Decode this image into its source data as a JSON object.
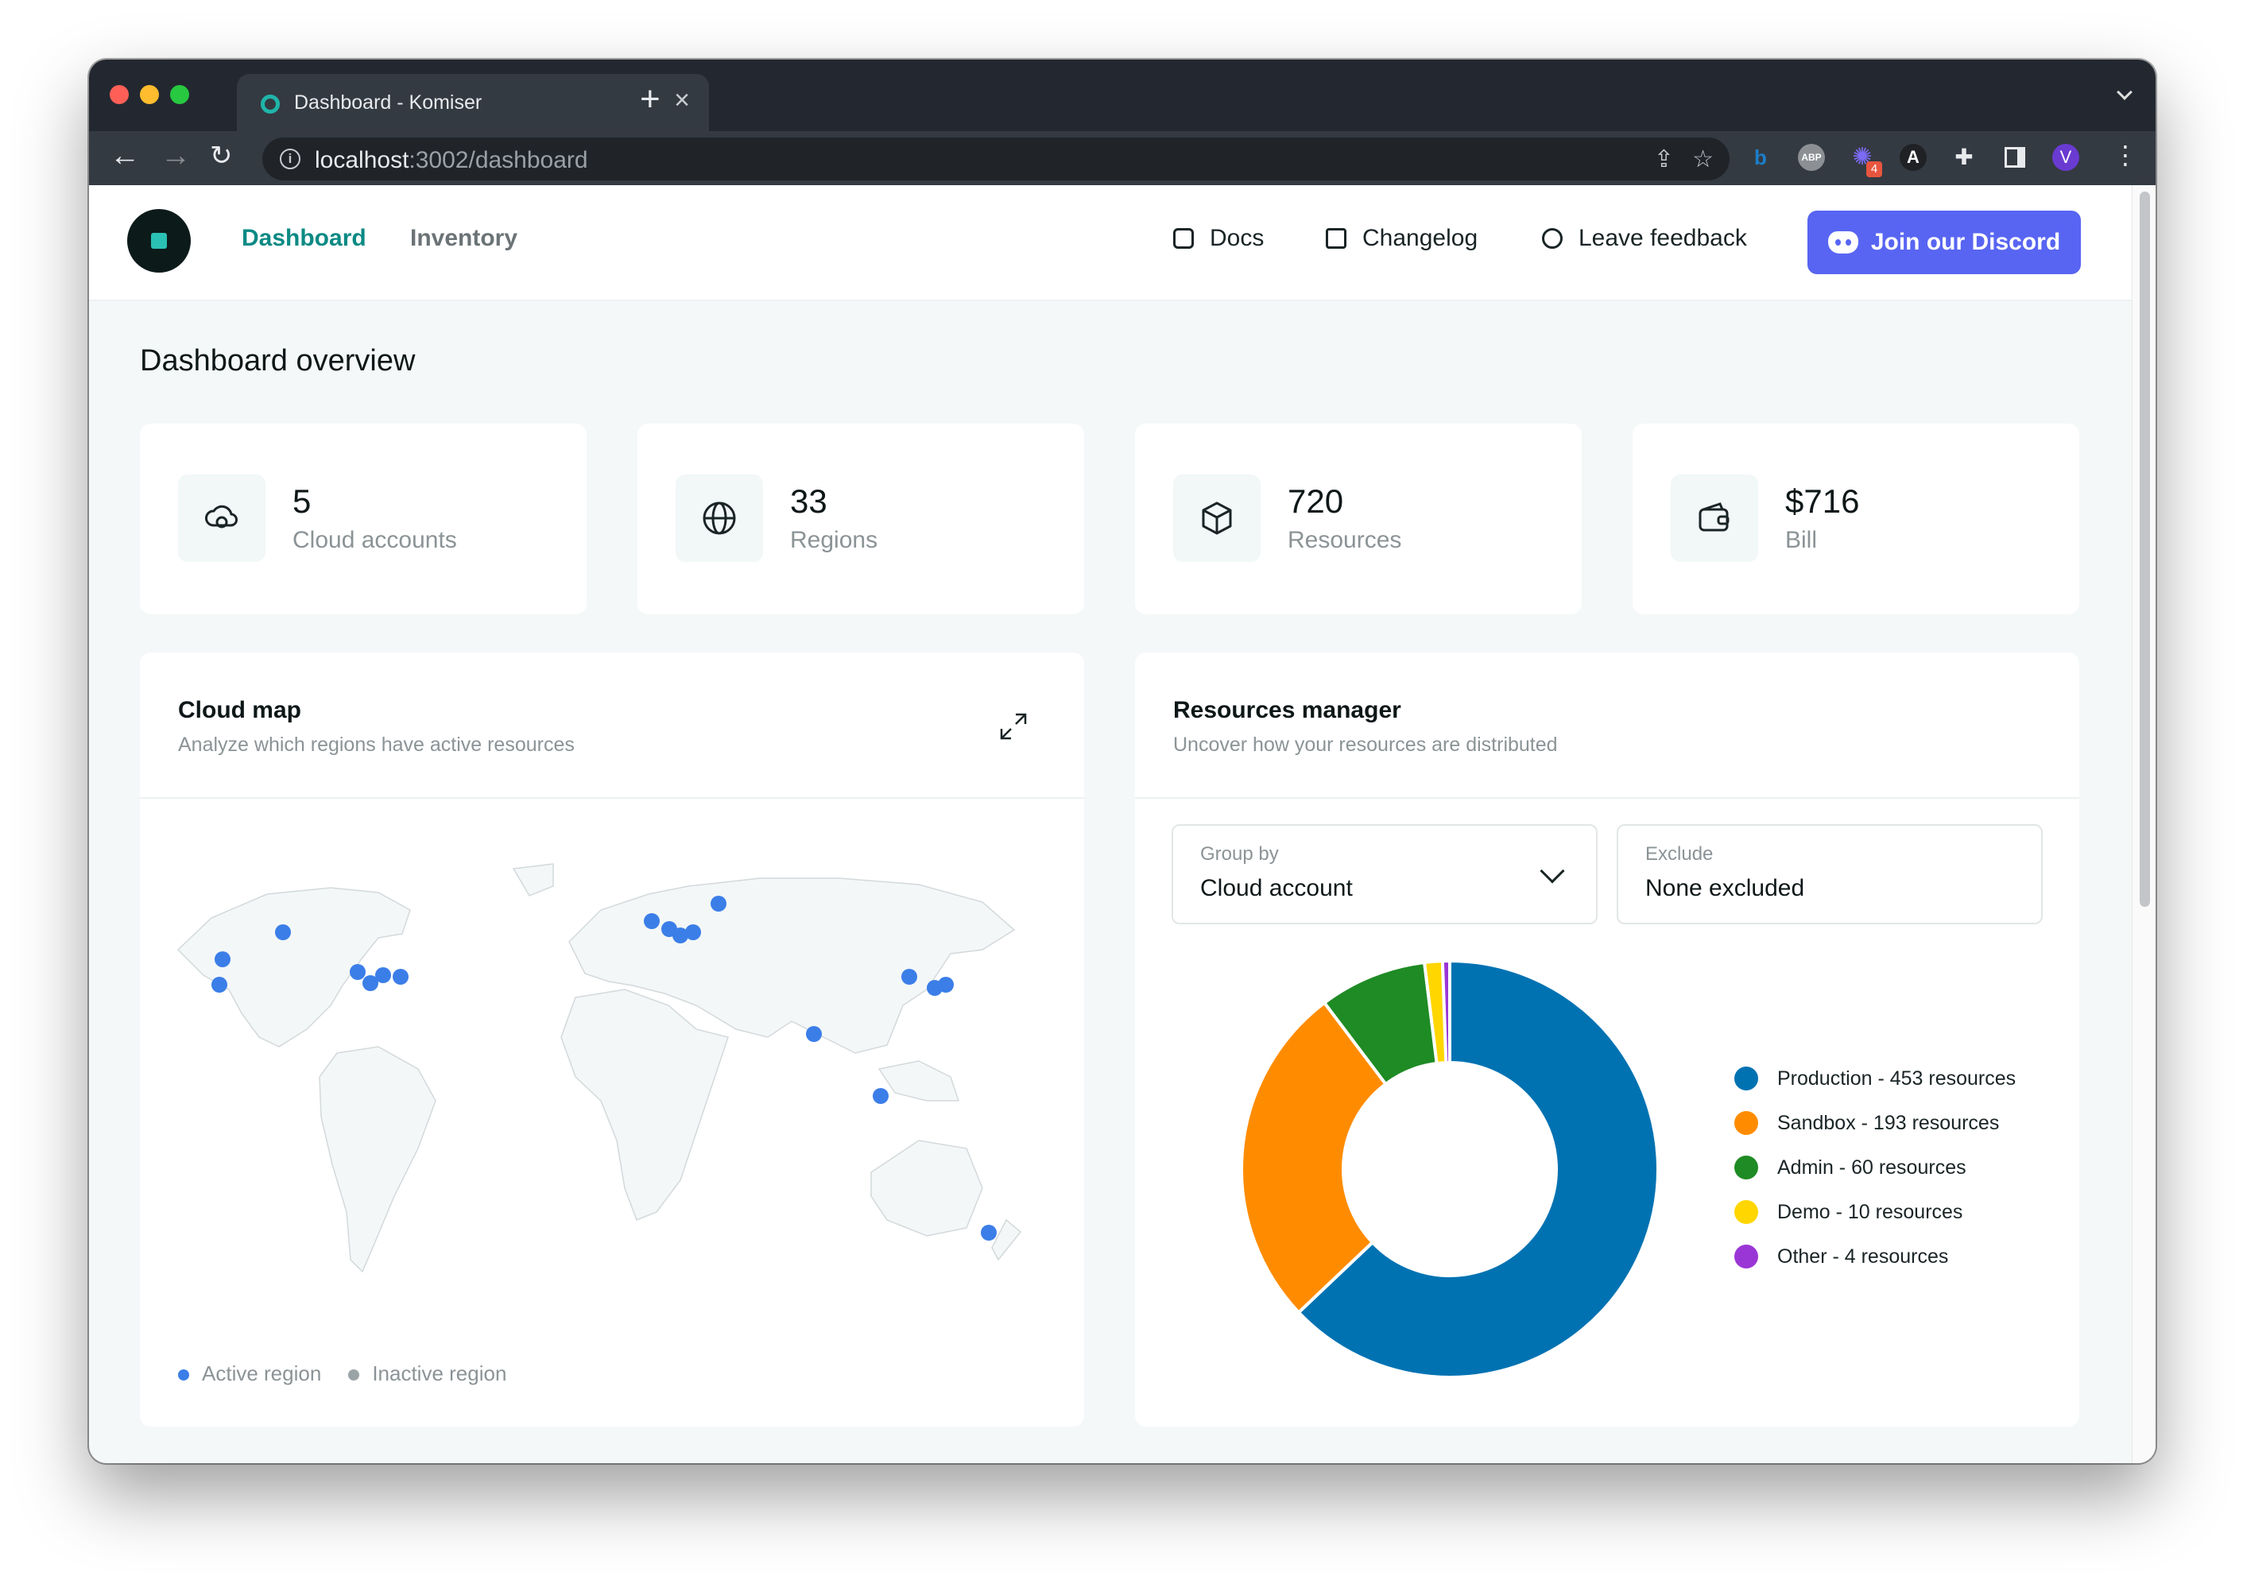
{
  "browser": {
    "tab_title": "Dashboard - Komiser",
    "url_host": "localhost",
    "url_path": ":3002/dashboard",
    "extensions": [
      "bing-icon",
      "abp-icon",
      "bug-icon",
      "angular-icon",
      "puzzle-icon",
      "sidebar-icon"
    ],
    "ext_abp": "ABP",
    "ext_badge": "4",
    "ext_angular": "A",
    "profile_initial": "V"
  },
  "header": {
    "nav": [
      "Dashboard",
      "Inventory"
    ],
    "active_nav": "Dashboard",
    "docs": "Docs",
    "changelog": "Changelog",
    "feedback": "Leave feedback",
    "discord": "Join our Discord"
  },
  "page": {
    "title": "Dashboard overview"
  },
  "stats": [
    {
      "value": "5",
      "label": "Cloud accounts",
      "icon": "cloud-icon"
    },
    {
      "value": "33",
      "label": "Regions",
      "icon": "globe-icon"
    },
    {
      "value": "720",
      "label": "Resources",
      "icon": "box-icon"
    },
    {
      "value": "$716",
      "label": "Bill",
      "icon": "wallet-icon"
    }
  ],
  "cloud_map": {
    "title": "Cloud map",
    "subtitle": "Analyze which regions have active resources",
    "legend_active": "Active region",
    "legend_inactive": "Inactive region",
    "active_color": "#3b7ee8",
    "inactive_color": "#9aa3a6"
  },
  "resources_manager": {
    "title": "Resources manager",
    "subtitle": "Uncover how your resources are distributed",
    "group_by_label": "Group by",
    "group_by_value": "Cloud account",
    "exclude_label": "Exclude",
    "exclude_value": "None excluded"
  },
  "chart_data": {
    "type": "pie",
    "categories": [
      "Production",
      "Sandbox",
      "Admin",
      "Demo",
      "Other"
    ],
    "values": [
      453,
      193,
      60,
      10,
      4
    ],
    "labels": [
      "Production - 453 resources",
      "Sandbox - 193 resources",
      "Admin - 60 resources",
      "Demo - 10 resources",
      "Other - 4 resources"
    ],
    "colors": [
      "#0072b2",
      "#ff8c00",
      "#1f8b24",
      "#ffd600",
      "#9b36d6"
    ],
    "legend": "right"
  }
}
